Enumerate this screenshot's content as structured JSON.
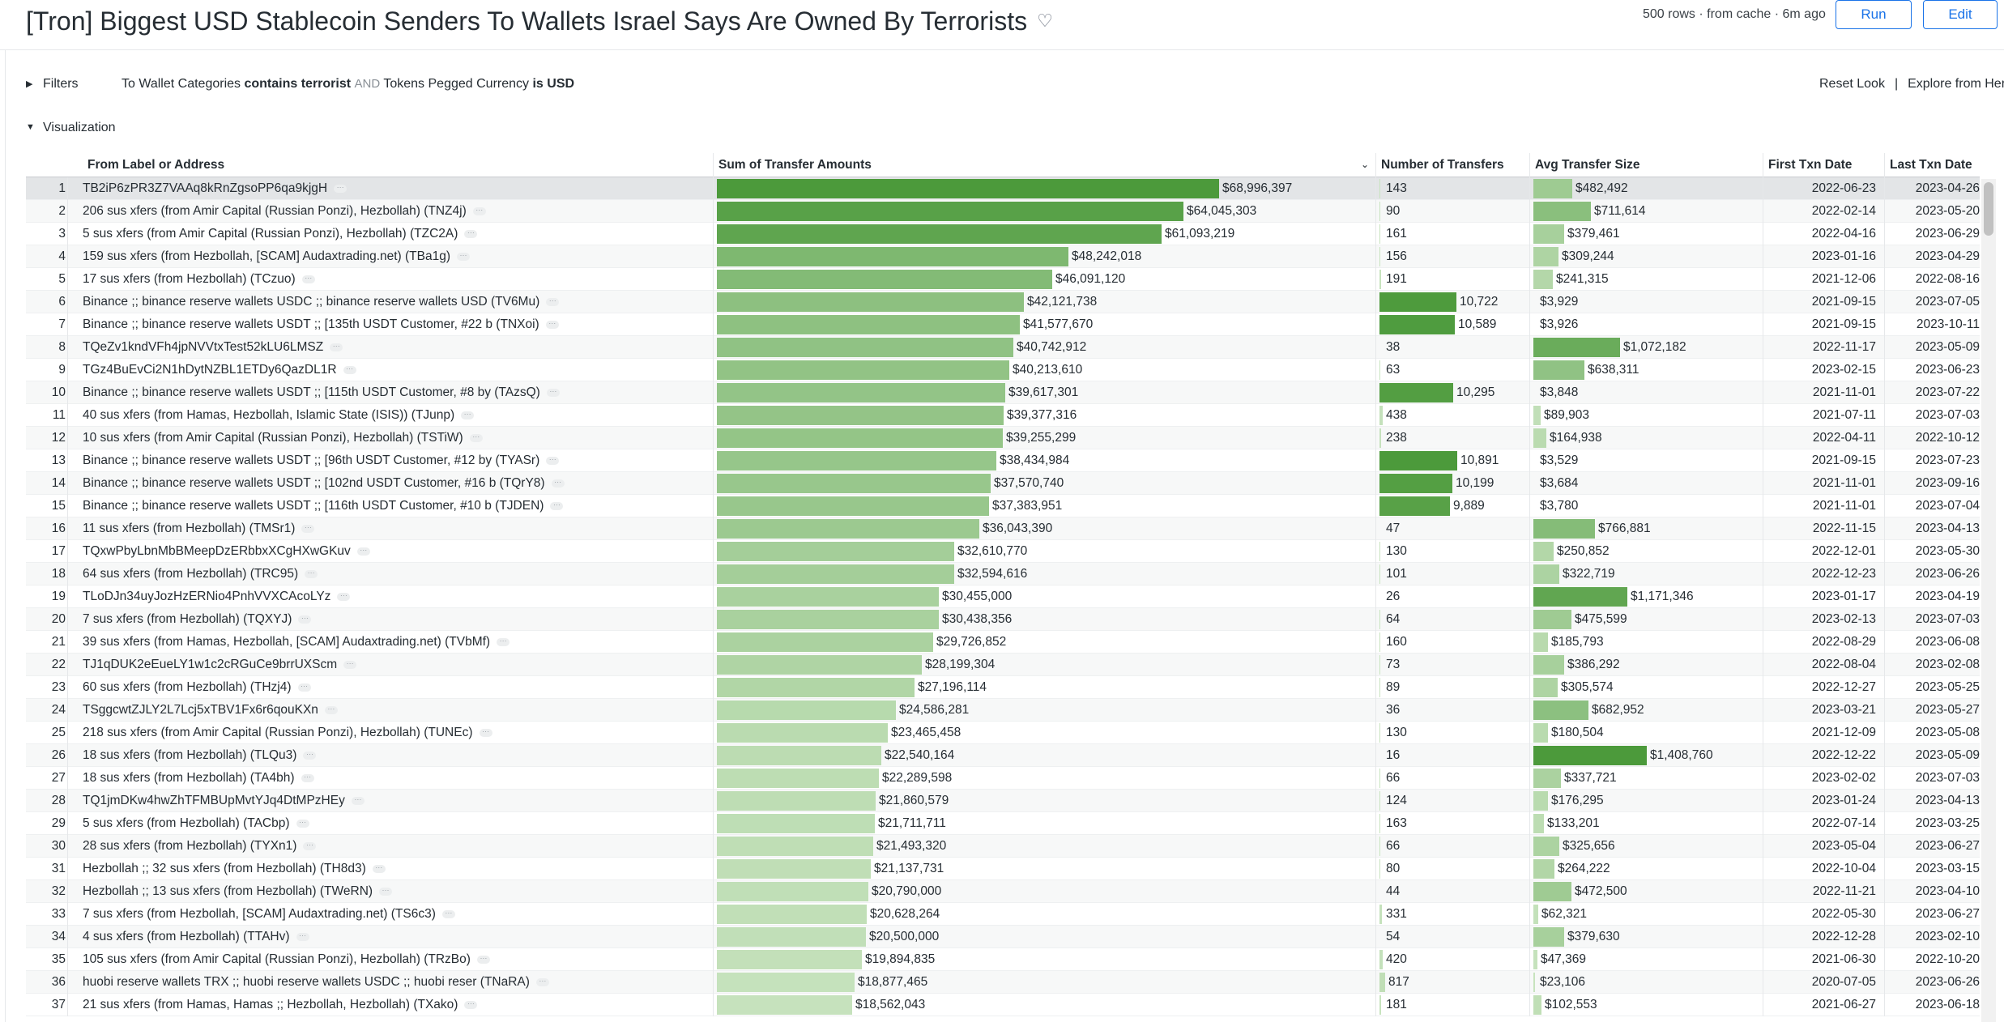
{
  "header": {
    "title": "[Tron] Biggest USD Stablecoin Senders To Wallets Israel Says Are Owned By Terrorists",
    "favorite_icon": "heart-icon",
    "meta": "500 rows · from cache · 6m ago",
    "run_label": "Run",
    "edit_label": "Edit"
  },
  "filters": {
    "label": "Filters",
    "expr_field1": "To Wallet Categories",
    "expr_op1": "contains terrorist",
    "expr_and": "AND",
    "expr_field2": "Tokens Pegged Currency",
    "expr_op2": "is USD",
    "reset_label": "Reset Look",
    "sep": "|",
    "explore_label": "Explore from Here"
  },
  "visualization": {
    "label": "Visualization"
  },
  "colors": {
    "bar_dark": "#4c9a3b",
    "bar_light": "#c9e4c0",
    "accent": "#1a73e8"
  },
  "table": {
    "columns": [
      "From Label or Address",
      "Sum of Transfer Amounts",
      "Number of Transfers",
      "Avg Transfer Size",
      "First Txn Date",
      "Last Txn Date"
    ],
    "rows": [
      {
        "idx": "1",
        "label": "TB2iP6zPR3Z7VAAq8kRnZgsoPP6qa9kjgH",
        "sum": "$68,996,397",
        "sum_v": 68996397,
        "num": "143",
        "num_v": 143,
        "avg": "$482,492",
        "avg_v": 482492,
        "first": "2022-06-23",
        "last": "2023-04-26"
      },
      {
        "idx": "2",
        "label": "206 sus xfers (from Amir Capital (Russian Ponzi), Hezbollah) (TNZ4j)",
        "sum": "$64,045,303",
        "sum_v": 64045303,
        "num": "90",
        "num_v": 90,
        "avg": "$711,614",
        "avg_v": 711614,
        "first": "2022-02-14",
        "last": "2023-05-20"
      },
      {
        "idx": "3",
        "label": "5 sus xfers (from Amir Capital (Russian Ponzi), Hezbollah) (TZC2A)",
        "sum": "$61,093,219",
        "sum_v": 61093219,
        "num": "161",
        "num_v": 161,
        "avg": "$379,461",
        "avg_v": 379461,
        "first": "2022-04-16",
        "last": "2023-06-29"
      },
      {
        "idx": "4",
        "label": "159 sus xfers (from Hezbollah, [SCAM] Audaxtrading.net) (TBa1g)",
        "sum": "$48,242,018",
        "sum_v": 48242018,
        "num": "156",
        "num_v": 156,
        "avg": "$309,244",
        "avg_v": 309244,
        "first": "2023-01-16",
        "last": "2023-04-29"
      },
      {
        "idx": "5",
        "label": "17 sus xfers (from Hezbollah) (TCzuo)",
        "sum": "$46,091,120",
        "sum_v": 46091120,
        "num": "191",
        "num_v": 191,
        "avg": "$241,315",
        "avg_v": 241315,
        "first": "2021-12-06",
        "last": "2022-08-16"
      },
      {
        "idx": "6",
        "label": "Binance ;; binance reserve wallets USDC ;; binance reserve wallets USD (TV6Mu)",
        "sum": "$42,121,738",
        "sum_v": 42121738,
        "num": "10,722",
        "num_v": 10722,
        "avg": "$3,929",
        "avg_v": 3929,
        "first": "2021-09-15",
        "last": "2023-07-05"
      },
      {
        "idx": "7",
        "label": "Binance ;; binance reserve wallets USDT ;; [135th USDT Customer, #22 b (TNXoi)",
        "sum": "$41,577,670",
        "sum_v": 41577670,
        "num": "10,589",
        "num_v": 10589,
        "avg": "$3,926",
        "avg_v": 3926,
        "first": "2021-09-15",
        "last": "2023-10-11"
      },
      {
        "idx": "8",
        "label": "TQeZv1kndVFh4jpNVVtxTest52kLU6LMSZ",
        "sum": "$40,742,912",
        "sum_v": 40742912,
        "num": "38",
        "num_v": 38,
        "avg": "$1,072,182",
        "avg_v": 1072182,
        "first": "2022-11-17",
        "last": "2023-05-09"
      },
      {
        "idx": "9",
        "label": "TGz4BuEvCi2N1hDytNZBL1ETDy6QazDL1R",
        "sum": "$40,213,610",
        "sum_v": 40213610,
        "num": "63",
        "num_v": 63,
        "avg": "$638,311",
        "avg_v": 638311,
        "first": "2023-02-15",
        "last": "2023-06-23"
      },
      {
        "idx": "10",
        "label": "Binance ;; binance reserve wallets USDT ;; [115th USDT Customer, #8 by (TAzsQ)",
        "sum": "$39,617,301",
        "sum_v": 39617301,
        "num": "10,295",
        "num_v": 10295,
        "avg": "$3,848",
        "avg_v": 3848,
        "first": "2021-11-01",
        "last": "2023-07-22"
      },
      {
        "idx": "11",
        "label": "40 sus xfers (from Hamas, Hezbollah, Islamic State (ISIS)) (TJunp)",
        "sum": "$39,377,316",
        "sum_v": 39377316,
        "num": "438",
        "num_v": 438,
        "avg": "$89,903",
        "avg_v": 89903,
        "first": "2021-07-11",
        "last": "2023-07-03"
      },
      {
        "idx": "12",
        "label": "10 sus xfers (from Amir Capital (Russian Ponzi), Hezbollah) (TSTiW)",
        "sum": "$39,255,299",
        "sum_v": 39255299,
        "num": "238",
        "num_v": 238,
        "avg": "$164,938",
        "avg_v": 164938,
        "first": "2022-04-11",
        "last": "2022-10-12"
      },
      {
        "idx": "13",
        "label": "Binance ;; binance reserve wallets USDT ;; [96th USDT Customer, #12 by (TYASr)",
        "sum": "$38,434,984",
        "sum_v": 38434984,
        "num": "10,891",
        "num_v": 10891,
        "avg": "$3,529",
        "avg_v": 3529,
        "first": "2021-09-15",
        "last": "2023-07-23"
      },
      {
        "idx": "14",
        "label": "Binance ;; binance reserve wallets USDT ;; [102nd USDT Customer, #16 b (TQrY8)",
        "sum": "$37,570,740",
        "sum_v": 37570740,
        "num": "10,199",
        "num_v": 10199,
        "avg": "$3,684",
        "avg_v": 3684,
        "first": "2021-11-01",
        "last": "2023-09-16"
      },
      {
        "idx": "15",
        "label": "Binance ;; binance reserve wallets USDT ;; [116th USDT Customer, #10 b (TJDEN)",
        "sum": "$37,383,951",
        "sum_v": 37383951,
        "num": "9,889",
        "num_v": 9889,
        "avg": "$3,780",
        "avg_v": 3780,
        "first": "2021-11-01",
        "last": "2023-07-04"
      },
      {
        "idx": "16",
        "label": "11 sus xfers (from Hezbollah) (TMSr1)",
        "sum": "$36,043,390",
        "sum_v": 36043390,
        "num": "47",
        "num_v": 47,
        "avg": "$766,881",
        "avg_v": 766881,
        "first": "2022-11-15",
        "last": "2023-04-13"
      },
      {
        "idx": "17",
        "label": "TQxwPbyLbnMbBMeepDzERbbxXCgHXwGKuv",
        "sum": "$32,610,770",
        "sum_v": 32610770,
        "num": "130",
        "num_v": 130,
        "avg": "$250,852",
        "avg_v": 250852,
        "first": "2022-12-01",
        "last": "2023-05-30"
      },
      {
        "idx": "18",
        "label": "64 sus xfers (from Hezbollah) (TRC95)",
        "sum": "$32,594,616",
        "sum_v": 32594616,
        "num": "101",
        "num_v": 101,
        "avg": "$322,719",
        "avg_v": 322719,
        "first": "2022-12-23",
        "last": "2023-06-26"
      },
      {
        "idx": "19",
        "label": "TLoDJn34uyJozHzERNio4PnhVVXCAcoLYz",
        "sum": "$30,455,000",
        "sum_v": 30455000,
        "num": "26",
        "num_v": 26,
        "avg": "$1,171,346",
        "avg_v": 1171346,
        "first": "2023-01-17",
        "last": "2023-04-19"
      },
      {
        "idx": "20",
        "label": "7 sus xfers (from Hezbollah) (TQXYJ)",
        "sum": "$30,438,356",
        "sum_v": 30438356,
        "num": "64",
        "num_v": 64,
        "avg": "$475,599",
        "avg_v": 475599,
        "first": "2023-02-13",
        "last": "2023-07-03"
      },
      {
        "idx": "21",
        "label": "39 sus xfers (from Hamas, Hezbollah, [SCAM] Audaxtrading.net) (TVbMf)",
        "sum": "$29,726,852",
        "sum_v": 29726852,
        "num": "160",
        "num_v": 160,
        "avg": "$185,793",
        "avg_v": 185793,
        "first": "2022-08-29",
        "last": "2023-06-08"
      },
      {
        "idx": "22",
        "label": "TJ1qDUK2eEueLY1w1c2cRGuCe9brrUXScm",
        "sum": "$28,199,304",
        "sum_v": 28199304,
        "num": "73",
        "num_v": 73,
        "avg": "$386,292",
        "avg_v": 386292,
        "first": "2022-08-04",
        "last": "2023-02-08"
      },
      {
        "idx": "23",
        "label": "60 sus xfers (from Hezbollah) (THzj4)",
        "sum": "$27,196,114",
        "sum_v": 27196114,
        "num": "89",
        "num_v": 89,
        "avg": "$305,574",
        "avg_v": 305574,
        "first": "2022-12-27",
        "last": "2023-05-25"
      },
      {
        "idx": "24",
        "label": "TSggcwtZJLY2L7Lcj5xTBV1Fx6r6qouKXn",
        "sum": "$24,586,281",
        "sum_v": 24586281,
        "num": "36",
        "num_v": 36,
        "avg": "$682,952",
        "avg_v": 682952,
        "first": "2023-03-21",
        "last": "2023-05-27"
      },
      {
        "idx": "25",
        "label": "218 sus xfers (from Amir Capital (Russian Ponzi), Hezbollah) (TUNEc)",
        "sum": "$23,465,458",
        "sum_v": 23465458,
        "num": "130",
        "num_v": 130,
        "avg": "$180,504",
        "avg_v": 180504,
        "first": "2021-12-09",
        "last": "2023-05-08"
      },
      {
        "idx": "26",
        "label": "18 sus xfers (from Hezbollah) (TLQu3)",
        "sum": "$22,540,164",
        "sum_v": 22540164,
        "num": "16",
        "num_v": 16,
        "avg": "$1,408,760",
        "avg_v": 1408760,
        "first": "2022-12-22",
        "last": "2023-05-09"
      },
      {
        "idx": "27",
        "label": "18 sus xfers (from Hezbollah) (TA4bh)",
        "sum": "$22,289,598",
        "sum_v": 22289598,
        "num": "66",
        "num_v": 66,
        "avg": "$337,721",
        "avg_v": 337721,
        "first": "2023-02-02",
        "last": "2023-07-03"
      },
      {
        "idx": "28",
        "label": "TQ1jmDKw4hwZhTFMBUpMvtYJq4DtMPzHEy",
        "sum": "$21,860,579",
        "sum_v": 21860579,
        "num": "124",
        "num_v": 124,
        "avg": "$176,295",
        "avg_v": 176295,
        "first": "2023-01-24",
        "last": "2023-04-13"
      },
      {
        "idx": "29",
        "label": "5 sus xfers (from Hezbollah) (TACbp)",
        "sum": "$21,711,711",
        "sum_v": 21711711,
        "num": "163",
        "num_v": 163,
        "avg": "$133,201",
        "avg_v": 133201,
        "first": "2022-07-14",
        "last": "2023-03-25"
      },
      {
        "idx": "30",
        "label": "28 sus xfers (from Hezbollah) (TYXn1)",
        "sum": "$21,493,320",
        "sum_v": 21493320,
        "num": "66",
        "num_v": 66,
        "avg": "$325,656",
        "avg_v": 325656,
        "first": "2023-05-04",
        "last": "2023-06-27"
      },
      {
        "idx": "31",
        "label": "Hezbollah ;; 32 sus xfers (from Hezbollah) (TH8d3)",
        "sum": "$21,137,731",
        "sum_v": 21137731,
        "num": "80",
        "num_v": 80,
        "avg": "$264,222",
        "avg_v": 264222,
        "first": "2022-10-04",
        "last": "2023-03-15"
      },
      {
        "idx": "32",
        "label": "Hezbollah ;; 13 sus xfers (from Hezbollah) (TWeRN)",
        "sum": "$20,790,000",
        "sum_v": 20790000,
        "num": "44",
        "num_v": 44,
        "avg": "$472,500",
        "avg_v": 472500,
        "first": "2022-11-21",
        "last": "2023-04-10"
      },
      {
        "idx": "33",
        "label": "7 sus xfers (from Hezbollah, [SCAM] Audaxtrading.net) (TS6c3)",
        "sum": "$20,628,264",
        "sum_v": 20628264,
        "num": "331",
        "num_v": 331,
        "avg": "$62,321",
        "avg_v": 62321,
        "first": "2022-05-30",
        "last": "2023-06-27"
      },
      {
        "idx": "34",
        "label": "4 sus xfers (from Hezbollah) (TTAHv)",
        "sum": "$20,500,000",
        "sum_v": 20500000,
        "num": "54",
        "num_v": 54,
        "avg": "$379,630",
        "avg_v": 379630,
        "first": "2022-12-28",
        "last": "2023-02-10"
      },
      {
        "idx": "35",
        "label": "105 sus xfers (from Amir Capital (Russian Ponzi), Hezbollah) (TRzBo)",
        "sum": "$19,894,835",
        "sum_v": 19894835,
        "num": "420",
        "num_v": 420,
        "avg": "$47,369",
        "avg_v": 47369,
        "first": "2021-06-30",
        "last": "2022-10-20"
      },
      {
        "idx": "36",
        "label": "huobi reserve wallets TRX ;; huobi reserve wallets USDC ;; huobi reser (TNaRA)",
        "sum": "$18,877,465",
        "sum_v": 18877465,
        "num": "817",
        "num_v": 817,
        "avg": "$23,106",
        "avg_v": 23106,
        "first": "2020-07-05",
        "last": "2023-06-26"
      },
      {
        "idx": "37",
        "label": "21 sus xfers (from Hamas, Hamas ;; Hezbollah, Hezbollah) (TXako)",
        "sum": "$18,562,043",
        "sum_v": 18562043,
        "num": "181",
        "num_v": 181,
        "avg": "$102,553",
        "avg_v": 102553,
        "first": "2021-06-27",
        "last": "2023-06-18"
      }
    ]
  }
}
